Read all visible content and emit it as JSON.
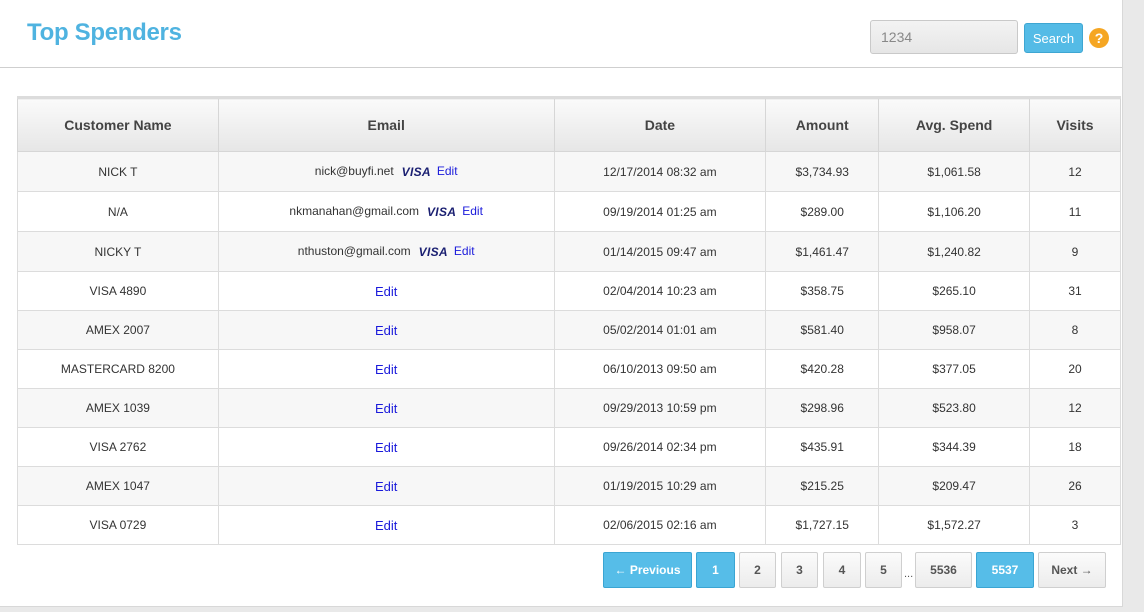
{
  "header": {
    "title": "Top Spenders",
    "search_value": "1234",
    "search_button": "Search",
    "help": "?"
  },
  "table": {
    "columns": [
      "Customer Name",
      "Email",
      "Date",
      "Amount",
      "Avg. Spend",
      "Visits"
    ],
    "rows": [
      {
        "name": "NICK T",
        "email": "nick@buyfi.net",
        "card": "VISA",
        "edit": "Edit",
        "date": "12/17/2014 08:32 am",
        "amount": "$3,734.93",
        "avg": "$1,061.58",
        "visits": "12"
      },
      {
        "name": "N/A",
        "email": "nkmanahan@gmail.com",
        "card": "VISA",
        "edit": "Edit",
        "date": "09/19/2014 01:25 am",
        "amount": "$289.00",
        "avg": "$1,106.20",
        "visits": "11"
      },
      {
        "name": "NICKY T",
        "email": "nthuston@gmail.com",
        "card": "VISA",
        "edit": "Edit",
        "date": "01/14/2015 09:47 am",
        "amount": "$1,461.47",
        "avg": "$1,240.82",
        "visits": "9"
      },
      {
        "name": "VISA 4890",
        "edit": "Edit",
        "date": "02/04/2014 10:23 am",
        "amount": "$358.75",
        "avg": "$265.10",
        "visits": "31"
      },
      {
        "name": "AMEX 2007",
        "edit": "Edit",
        "date": "05/02/2014 01:01 am",
        "amount": "$581.40",
        "avg": "$958.07",
        "visits": "8"
      },
      {
        "name": "MASTERCARD 8200",
        "edit": "Edit",
        "date": "06/10/2013 09:50 am",
        "amount": "$420.28",
        "avg": "$377.05",
        "visits": "20"
      },
      {
        "name": "AMEX 1039",
        "edit": "Edit",
        "date": "09/29/2013 10:59 pm",
        "amount": "$298.96",
        "avg": "$523.80",
        "visits": "12"
      },
      {
        "name": "VISA 2762",
        "edit": "Edit",
        "date": "09/26/2014 02:34 pm",
        "amount": "$435.91",
        "avg": "$344.39",
        "visits": "18"
      },
      {
        "name": "AMEX 1047",
        "edit": "Edit",
        "date": "01/19/2015 10:29 am",
        "amount": "$215.25",
        "avg": "$209.47",
        "visits": "26"
      },
      {
        "name": "VISA 0729",
        "edit": "Edit",
        "date": "02/06/2015 02:16 am",
        "amount": "$1,727.15",
        "avg": "$1,572.27",
        "visits": "3"
      }
    ]
  },
  "pagination": {
    "previous": "← Previous",
    "pages": [
      "1",
      "2",
      "3",
      "4",
      "5"
    ],
    "ellipsis": "...",
    "last_pages": [
      "5536",
      "5537"
    ],
    "next": "Next →",
    "current": "1"
  }
}
